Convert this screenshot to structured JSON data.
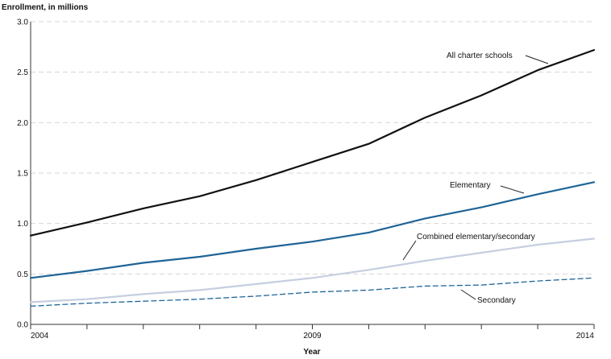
{
  "chart_data": {
    "type": "line",
    "title": "",
    "ylabel": "Enrollment, in millions",
    "xlabel": "Year",
    "xlim": [
      2004,
      2014
    ],
    "ylim": [
      0,
      3.0
    ],
    "x_tick_labels": [
      "2004",
      "2009",
      "2014"
    ],
    "y_tick_labels": [
      "0.0",
      "0.5",
      "1.0",
      "1.5",
      "2.0",
      "2.5",
      "3.0"
    ],
    "grid": true,
    "x": [
      2004,
      2005,
      2006,
      2007,
      2008,
      2009,
      2010,
      2011,
      2012,
      2013,
      2014
    ],
    "series": [
      {
        "name": "All charter schools",
        "color": "#111111",
        "style": "solid",
        "values": [
          0.88,
          1.01,
          1.15,
          1.27,
          1.43,
          1.61,
          1.79,
          2.05,
          2.27,
          2.52,
          2.72
        ]
      },
      {
        "name": "Elementary",
        "color": "#1f6497",
        "style": "solid",
        "values": [
          0.46,
          0.53,
          0.61,
          0.67,
          0.75,
          0.82,
          0.91,
          1.05,
          1.16,
          1.29,
          1.41
        ]
      },
      {
        "name": "Combined elementary/secondary",
        "color": "#c5cfe0",
        "style": "solid",
        "values": [
          0.22,
          0.25,
          0.3,
          0.34,
          0.4,
          0.46,
          0.54,
          0.63,
          0.71,
          0.79,
          0.85
        ]
      },
      {
        "name": "Secondary",
        "color": "#1f6497",
        "style": "dashed",
        "values": [
          0.18,
          0.21,
          0.23,
          0.25,
          0.28,
          0.32,
          0.34,
          0.38,
          0.39,
          0.43,
          0.46
        ]
      }
    ]
  }
}
